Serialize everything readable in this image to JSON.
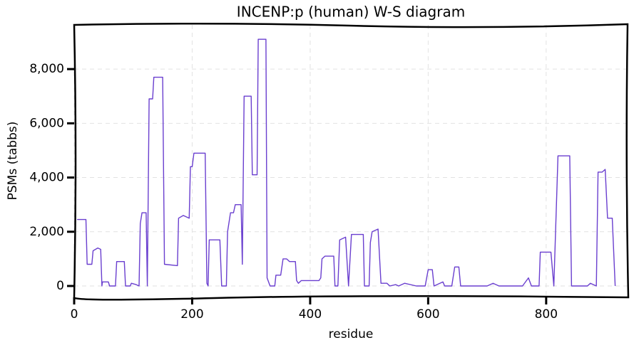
{
  "chart_data": {
    "type": "line",
    "title": "INCENP:p (human) W-S diagram",
    "x_label": "residue",
    "y_label": "PSMs (tabbs)",
    "xlim": [
      0,
      938
    ],
    "ylim": [
      -420,
      9630
    ],
    "xticks": [
      0,
      200,
      400,
      600,
      800
    ],
    "yticks": [
      0,
      {
        "value": 2000,
        "label": "2,000"
      },
      {
        "value": 4000,
        "label": "4,000"
      },
      {
        "value": 6000,
        "label": "6,000"
      },
      {
        "value": 8000,
        "label": "8,000"
      }
    ],
    "grid": true,
    "color": "#6a3fcf",
    "x": [
      5,
      20,
      22,
      30,
      32,
      40,
      45,
      47,
      48,
      58,
      60,
      70,
      72,
      85,
      87,
      95,
      97,
      105,
      110,
      112,
      115,
      122,
      124,
      127,
      133,
      135,
      150,
      153,
      175,
      177,
      185,
      195,
      197,
      200,
      203,
      222,
      225,
      227,
      229,
      247,
      250,
      258,
      260,
      265,
      270,
      273,
      283,
      285,
      288,
      300,
      302,
      310,
      312,
      325,
      327,
      332,
      340,
      342,
      350,
      354,
      360,
      365,
      375,
      377,
      380,
      385,
      415,
      418,
      420,
      425,
      440,
      442,
      447,
      450,
      460,
      465,
      470,
      490,
      492,
      500,
      502,
      505,
      515,
      520,
      530,
      535,
      545,
      550,
      560,
      580,
      595,
      600,
      607,
      610,
      625,
      628,
      640,
      645,
      652,
      655,
      700,
      710,
      720,
      760,
      770,
      775,
      788,
      790,
      808,
      813,
      820,
      840,
      843,
      870,
      875,
      885,
      888,
      895,
      900,
      904,
      912,
      917
    ],
    "values": [
      2450,
      2450,
      800,
      800,
      1300,
      1400,
      1350,
      0,
      150,
      150,
      0,
      0,
      900,
      900,
      0,
      0,
      100,
      50,
      0,
      2300,
      2700,
      2700,
      0,
      6900,
      6900,
      7700,
      7700,
      800,
      750,
      2500,
      2600,
      2500,
      4400,
      4400,
      4900,
      4900,
      100,
      0,
      1700,
      1700,
      0,
      0,
      2000,
      2700,
      2700,
      3000,
      3000,
      800,
      7000,
      7000,
      4100,
      4100,
      9100,
      9100,
      300,
      0,
      0,
      400,
      400,
      1000,
      1000,
      900,
      900,
      200,
      100,
      200,
      200,
      300,
      1000,
      1100,
      1100,
      0,
      0,
      1700,
      1800,
      0,
      1900,
      1900,
      0,
      0,
      1600,
      2000,
      2100,
      100,
      100,
      0,
      50,
      0,
      100,
      0,
      0,
      600,
      600,
      0,
      150,
      0,
      0,
      700,
      700,
      0,
      0,
      100,
      0,
      0,
      300,
      0,
      0,
      1250,
      1250,
      0,
      4800,
      4800,
      0,
      0,
      100,
      0,
      4200,
      4200,
      4300,
      2500,
      2500,
      0
    ]
  }
}
